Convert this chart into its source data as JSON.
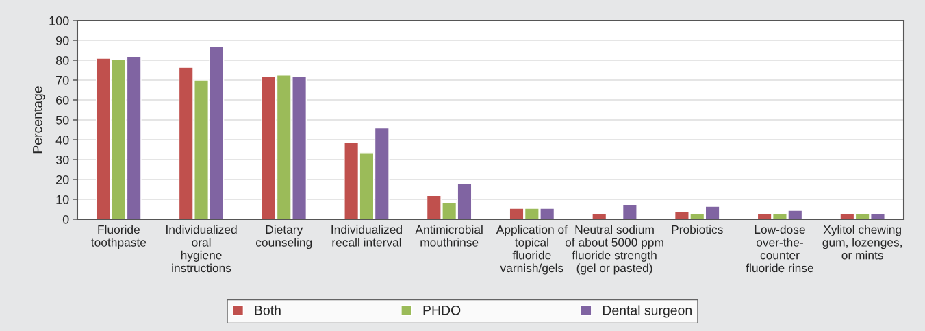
{
  "chart_data": {
    "type": "bar",
    "ylabel": "Percentage",
    "categories": [
      "Fluoride\ntoothpaste",
      "Individualized\noral\nhygiene\ninstructions",
      "Dietary\ncounseling",
      "Individualized\nrecall interval",
      "Antimicrobial\nmouthrinse",
      "Application of\ntopical\nfluoride\nvarnish/gels",
      "Neutral sodium\nof about 5000 ppm\nfluoride strength\n(gel or pasted)",
      "Probiotics",
      "Low-dose\nover-the-\ncounter\nfluoride rinse",
      "Xylitol chewing\ngum, lozenges,\nor mints"
    ],
    "series": [
      {
        "name": "Both",
        "color": "#c0504d",
        "values": [
          81,
          76.5,
          72,
          38.5,
          12,
          5.5,
          3,
          4,
          3,
          3
        ]
      },
      {
        "name": "PHDO",
        "color": "#9bbb59",
        "values": [
          80.5,
          70,
          72.5,
          33.5,
          8.5,
          5.5,
          null,
          3,
          3,
          3
        ]
      },
      {
        "name": "Dental surgeon",
        "color": "#8064a2",
        "values": [
          82,
          87,
          72,
          46,
          18,
          5.5,
          7.5,
          6.5,
          4.5,
          3
        ]
      }
    ],
    "ylim": [
      0,
      100
    ],
    "yticks": [
      0,
      10,
      20,
      30,
      40,
      50,
      60,
      70,
      80,
      90,
      100
    ],
    "grid": "y",
    "legend": "bottom"
  }
}
